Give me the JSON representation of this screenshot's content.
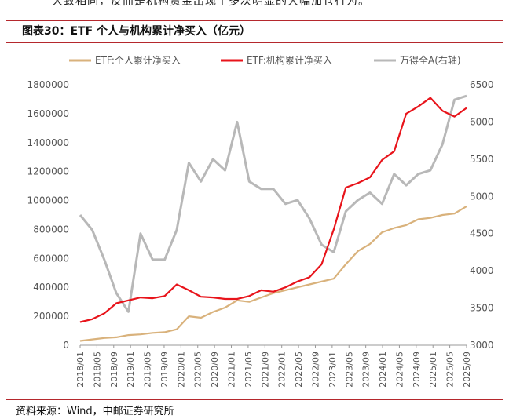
{
  "top_text": "大致相同，反而是机构资金出现了多次明显的大幅加仓行为。",
  "figure_title": "图表30：ETF 个人与机构累计净买入（亿元）",
  "source_note": "资料来源：Wind，中邮证券研究所",
  "colors": {
    "individual": "#d9b27c",
    "institution": "#e8141b",
    "index": "#b8b8b8",
    "rule": "#b5282d"
  },
  "chart_data": {
    "type": "line",
    "title": "",
    "x_labels": [
      "2018/01",
      "2018/05",
      "2018/09",
      "2019/01",
      "2019/05",
      "2019/09",
      "2020/01",
      "2020/05",
      "2020/09",
      "2021/01",
      "2021/05",
      "2021/09",
      "2022/01",
      "2022/05",
      "2022/09",
      "2023/01",
      "2023/05",
      "2023/09",
      "2024/01",
      "2024/05",
      "2024/09",
      "2025/01",
      "2025/05",
      "2025/09"
    ],
    "y_left": {
      "min": 0,
      "max": 1800000,
      "ticks": [
        "0",
        "200000",
        "400000",
        "600000",
        "800000",
        "1000000",
        "1200000",
        "1400000",
        "1600000",
        "1800000"
      ]
    },
    "y_right": {
      "min": 3000,
      "max": 6500,
      "ticks": [
        "3000",
        "3500",
        "4000",
        "4500",
        "5000",
        "5500",
        "6000",
        "6500"
      ]
    },
    "series": [
      {
        "name": "ETF:个人累计净买入",
        "axis": "left",
        "key": "individual",
        "values": [
          30000,
          40000,
          50000,
          55000,
          70000,
          75000,
          85000,
          90000,
          110000,
          200000,
          190000,
          230000,
          260000,
          310000,
          300000,
          330000,
          360000,
          380000,
          400000,
          420000,
          440000,
          460000,
          560000,
          650000,
          700000,
          780000,
          810000,
          830000,
          870000,
          880000,
          900000,
          910000,
          960000
        ]
      },
      {
        "name": "ETF:机构累计净买入",
        "axis": "left",
        "key": "institution",
        "values": [
          160000,
          180000,
          220000,
          290000,
          310000,
          330000,
          325000,
          340000,
          420000,
          380000,
          335000,
          330000,
          320000,
          320000,
          340000,
          380000,
          370000,
          400000,
          440000,
          470000,
          560000,
          800000,
          1090000,
          1120000,
          1160000,
          1280000,
          1340000,
          1600000,
          1650000,
          1710000,
          1620000,
          1580000,
          1640000
        ]
      },
      {
        "name": "万得全A(右轴)",
        "axis": "right",
        "key": "index",
        "values": [
          4750,
          4550,
          4150,
          3700,
          3450,
          4500,
          4150,
          4150,
          4550,
          5450,
          5200,
          5500,
          5350,
          6000,
          5200,
          5100,
          5100,
          4900,
          4950,
          4700,
          4350,
          4250,
          4800,
          4950,
          5050,
          4900,
          5300,
          5150,
          5300,
          5350,
          5700,
          6300,
          6350
        ]
      }
    ]
  }
}
